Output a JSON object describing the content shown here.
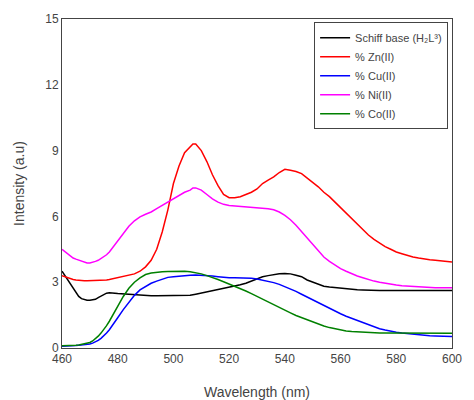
{
  "chart_data": {
    "type": "line",
    "xlabel": "Wavelength (nm)",
    "ylabel": "Intensity (a.u)",
    "xlim": [
      460,
      600
    ],
    "ylim": [
      0,
      15
    ],
    "xticks": [
      460,
      480,
      500,
      520,
      540,
      560,
      580,
      600
    ],
    "yticks": [
      0,
      3,
      6,
      9,
      12,
      15
    ],
    "grid": false,
    "legend": "upper right",
    "series": [
      {
        "name": "Schiff base (H₂L³)",
        "color": "black",
        "x": [
          460,
          461,
          462,
          463,
          464,
          465,
          466,
          467,
          468,
          469,
          470,
          471,
          472,
          473,
          474,
          475,
          476,
          477,
          478,
          479,
          480,
          482,
          484,
          486,
          488,
          490,
          492,
          494,
          496,
          498,
          500,
          502,
          504,
          506,
          508,
          510,
          512,
          514,
          516,
          518,
          520,
          522,
          524,
          526,
          528,
          530,
          532,
          534,
          536,
          538,
          540,
          542,
          544,
          546,
          548,
          550,
          552,
          554,
          556,
          558,
          560,
          562,
          564,
          566,
          568,
          570,
          572,
          574,
          576,
          578,
          580,
          582,
          584,
          586,
          588,
          590,
          592,
          594,
          596,
          598,
          600
        ],
        "values": [
          3.5,
          3.3,
          3.1,
          2.9,
          2.7,
          2.5,
          2.35,
          2.25,
          2.2,
          2.18,
          2.18,
          2.2,
          2.22,
          2.3,
          2.38,
          2.45,
          2.5,
          2.52,
          2.52,
          2.5,
          2.48,
          2.46,
          2.44,
          2.42,
          2.4,
          2.38,
          2.38,
          2.38,
          2.38,
          2.38,
          2.38,
          2.38,
          2.38,
          2.4,
          2.45,
          2.5,
          2.55,
          2.6,
          2.65,
          2.7,
          2.75,
          2.8,
          2.88,
          2.95,
          3.05,
          3.15,
          3.25,
          3.3,
          3.35,
          3.38,
          3.4,
          3.38,
          3.32,
          3.25,
          3.1,
          3.0,
          2.9,
          2.82,
          2.78,
          2.75,
          2.72,
          2.7,
          2.68,
          2.66,
          2.65,
          2.63,
          2.62,
          2.62,
          2.62,
          2.62,
          2.62,
          2.62,
          2.62,
          2.62,
          2.62,
          2.62,
          2.62,
          2.62,
          2.62,
          2.62,
          2.62
        ]
      },
      {
        "name": "% Zn(II)",
        "color": "red",
        "x": [
          460,
          461,
          462,
          463,
          464,
          465,
          466,
          467,
          468,
          469,
          470,
          471,
          472,
          473,
          474,
          475,
          476,
          477,
          478,
          479,
          480,
          482,
          484,
          486,
          488,
          490,
          492,
          494,
          496,
          498,
          500,
          502,
          504,
          506,
          507,
          508,
          510,
          512,
          514,
          516,
          518,
          520,
          522,
          524,
          526,
          528,
          530,
          532,
          534,
          536,
          538,
          540,
          542,
          544,
          546,
          548,
          550,
          552,
          554,
          556,
          558,
          560,
          562,
          564,
          566,
          568,
          570,
          572,
          574,
          576,
          578,
          580,
          582,
          584,
          586,
          588,
          590,
          592,
          594,
          596,
          598,
          600
        ],
        "values": [
          3.3,
          3.25,
          3.2,
          3.15,
          3.12,
          3.1,
          3.08,
          3.07,
          3.07,
          3.07,
          3.07,
          3.07,
          3.07,
          3.07,
          3.08,
          3.08,
          3.1,
          3.12,
          3.15,
          3.18,
          3.2,
          3.25,
          3.3,
          3.38,
          3.5,
          3.7,
          4.0,
          4.5,
          5.3,
          6.3,
          7.5,
          8.3,
          8.9,
          9.2,
          9.3,
          9.3,
          9.0,
          8.5,
          7.9,
          7.4,
          7.0,
          6.85,
          6.85,
          6.9,
          7.0,
          7.1,
          7.25,
          7.5,
          7.65,
          7.8,
          8.0,
          8.15,
          8.1,
          8.05,
          7.95,
          7.75,
          7.55,
          7.35,
          7.1,
          6.9,
          6.65,
          6.4,
          6.15,
          5.9,
          5.65,
          5.4,
          5.15,
          4.95,
          4.78,
          4.62,
          4.5,
          4.38,
          4.3,
          4.22,
          4.15,
          4.1,
          4.05,
          4.02,
          4.0,
          3.98,
          3.95,
          3.92
        ]
      },
      {
        "name": "% Cu(II)",
        "color": "blue",
        "x": [
          460,
          461,
          462,
          463,
          464,
          465,
          466,
          467,
          468,
          469,
          470,
          471,
          472,
          473,
          474,
          475,
          476,
          477,
          478,
          479,
          480,
          482,
          484,
          486,
          488,
          490,
          492,
          494,
          496,
          498,
          500,
          502,
          504,
          506,
          508,
          510,
          512,
          514,
          516,
          518,
          520,
          522,
          524,
          526,
          528,
          530,
          532,
          534,
          536,
          538,
          540,
          542,
          544,
          546,
          548,
          550,
          552,
          554,
          556,
          558,
          560,
          562,
          564,
          566,
          568,
          570,
          572,
          574,
          576,
          578,
          580,
          582,
          584,
          586,
          588,
          590,
          592,
          594,
          596,
          598,
          600
        ],
        "values": [
          0.08,
          0.08,
          0.09,
          0.09,
          0.1,
          0.11,
          0.12,
          0.13,
          0.14,
          0.16,
          0.18,
          0.22,
          0.28,
          0.35,
          0.44,
          0.55,
          0.68,
          0.83,
          1.0,
          1.18,
          1.38,
          1.75,
          2.1,
          2.4,
          2.65,
          2.82,
          2.95,
          3.05,
          3.15,
          3.22,
          3.25,
          3.28,
          3.3,
          3.32,
          3.33,
          3.32,
          3.3,
          3.28,
          3.25,
          3.22,
          3.2,
          3.2,
          3.2,
          3.2,
          3.18,
          3.15,
          3.1,
          3.05,
          2.98,
          2.9,
          2.8,
          2.7,
          2.58,
          2.45,
          2.32,
          2.18,
          2.05,
          1.92,
          1.8,
          1.68,
          1.56,
          1.45,
          1.35,
          1.25,
          1.15,
          1.05,
          0.96,
          0.88,
          0.82,
          0.76,
          0.72,
          0.68,
          0.65,
          0.62,
          0.6,
          0.58,
          0.56,
          0.55,
          0.54,
          0.53,
          0.52
        ]
      },
      {
        "name": "% Ni(II)",
        "color": "magenta",
        "x": [
          460,
          461,
          462,
          463,
          464,
          465,
          466,
          467,
          468,
          469,
          470,
          471,
          472,
          473,
          474,
          475,
          476,
          477,
          478,
          479,
          480,
          482,
          484,
          486,
          488,
          490,
          492,
          494,
          496,
          498,
          500,
          502,
          504,
          506,
          507,
          508,
          510,
          512,
          514,
          516,
          518,
          520,
          522,
          524,
          526,
          528,
          530,
          532,
          534,
          536,
          538,
          540,
          542,
          544,
          546,
          548,
          550,
          552,
          554,
          556,
          558,
          560,
          562,
          564,
          566,
          568,
          570,
          572,
          574,
          576,
          578,
          580,
          582,
          584,
          586,
          588,
          590,
          592,
          594,
          596,
          598,
          600
        ],
        "values": [
          4.5,
          4.4,
          4.3,
          4.2,
          4.1,
          4.05,
          4.0,
          3.95,
          3.9,
          3.88,
          3.88,
          3.9,
          3.95,
          4.0,
          4.08,
          4.15,
          4.25,
          4.38,
          4.55,
          4.72,
          4.9,
          5.25,
          5.55,
          5.8,
          5.98,
          6.1,
          6.2,
          6.35,
          6.5,
          6.65,
          6.8,
          6.95,
          7.1,
          7.2,
          7.3,
          7.3,
          7.2,
          7.0,
          6.8,
          6.65,
          6.55,
          6.5,
          6.48,
          6.45,
          6.45,
          6.42,
          6.4,
          6.38,
          6.35,
          6.3,
          6.2,
          6.05,
          5.85,
          5.6,
          5.3,
          5.0,
          4.7,
          4.4,
          4.15,
          3.95,
          3.78,
          3.62,
          3.5,
          3.38,
          3.28,
          3.2,
          3.12,
          3.05,
          3.0,
          2.95,
          2.9,
          2.87,
          2.84,
          2.82,
          2.8,
          2.78,
          2.77,
          2.76,
          2.75,
          2.75,
          2.75,
          2.75
        ]
      },
      {
        "name": "% Co(II)",
        "color": "green",
        "x": [
          460,
          461,
          462,
          463,
          464,
          465,
          466,
          467,
          468,
          469,
          470,
          471,
          472,
          473,
          474,
          475,
          476,
          477,
          478,
          479,
          480,
          482,
          484,
          486,
          488,
          490,
          492,
          494,
          496,
          498,
          500,
          502,
          504,
          506,
          508,
          510,
          512,
          514,
          516,
          518,
          520,
          522,
          524,
          526,
          528,
          530,
          532,
          534,
          536,
          538,
          540,
          542,
          544,
          546,
          548,
          550,
          552,
          554,
          556,
          558,
          560,
          562,
          564,
          566,
          568,
          570,
          572,
          574,
          576,
          578,
          580,
          582,
          584,
          586,
          588,
          590,
          592,
          594,
          596,
          598,
          600
        ],
        "values": [
          0.1,
          0.1,
          0.1,
          0.11,
          0.12,
          0.13,
          0.14,
          0.16,
          0.18,
          0.21,
          0.25,
          0.32,
          0.42,
          0.54,
          0.68,
          0.84,
          1.02,
          1.22,
          1.44,
          1.67,
          1.9,
          2.35,
          2.72,
          3.0,
          3.2,
          3.35,
          3.42,
          3.46,
          3.48,
          3.49,
          3.5,
          3.5,
          3.5,
          3.48,
          3.44,
          3.38,
          3.3,
          3.22,
          3.12,
          3.02,
          2.92,
          2.82,
          2.72,
          2.6,
          2.48,
          2.35,
          2.22,
          2.1,
          1.98,
          1.85,
          1.72,
          1.6,
          1.48,
          1.38,
          1.28,
          1.18,
          1.08,
          1.0,
          0.93,
          0.87,
          0.82,
          0.78,
          0.75,
          0.73,
          0.71,
          0.7,
          0.69,
          0.68,
          0.68,
          0.68,
          0.68,
          0.68,
          0.68,
          0.67,
          0.67,
          0.67,
          0.67,
          0.67,
          0.67,
          0.67,
          0.67
        ]
      }
    ]
  }
}
